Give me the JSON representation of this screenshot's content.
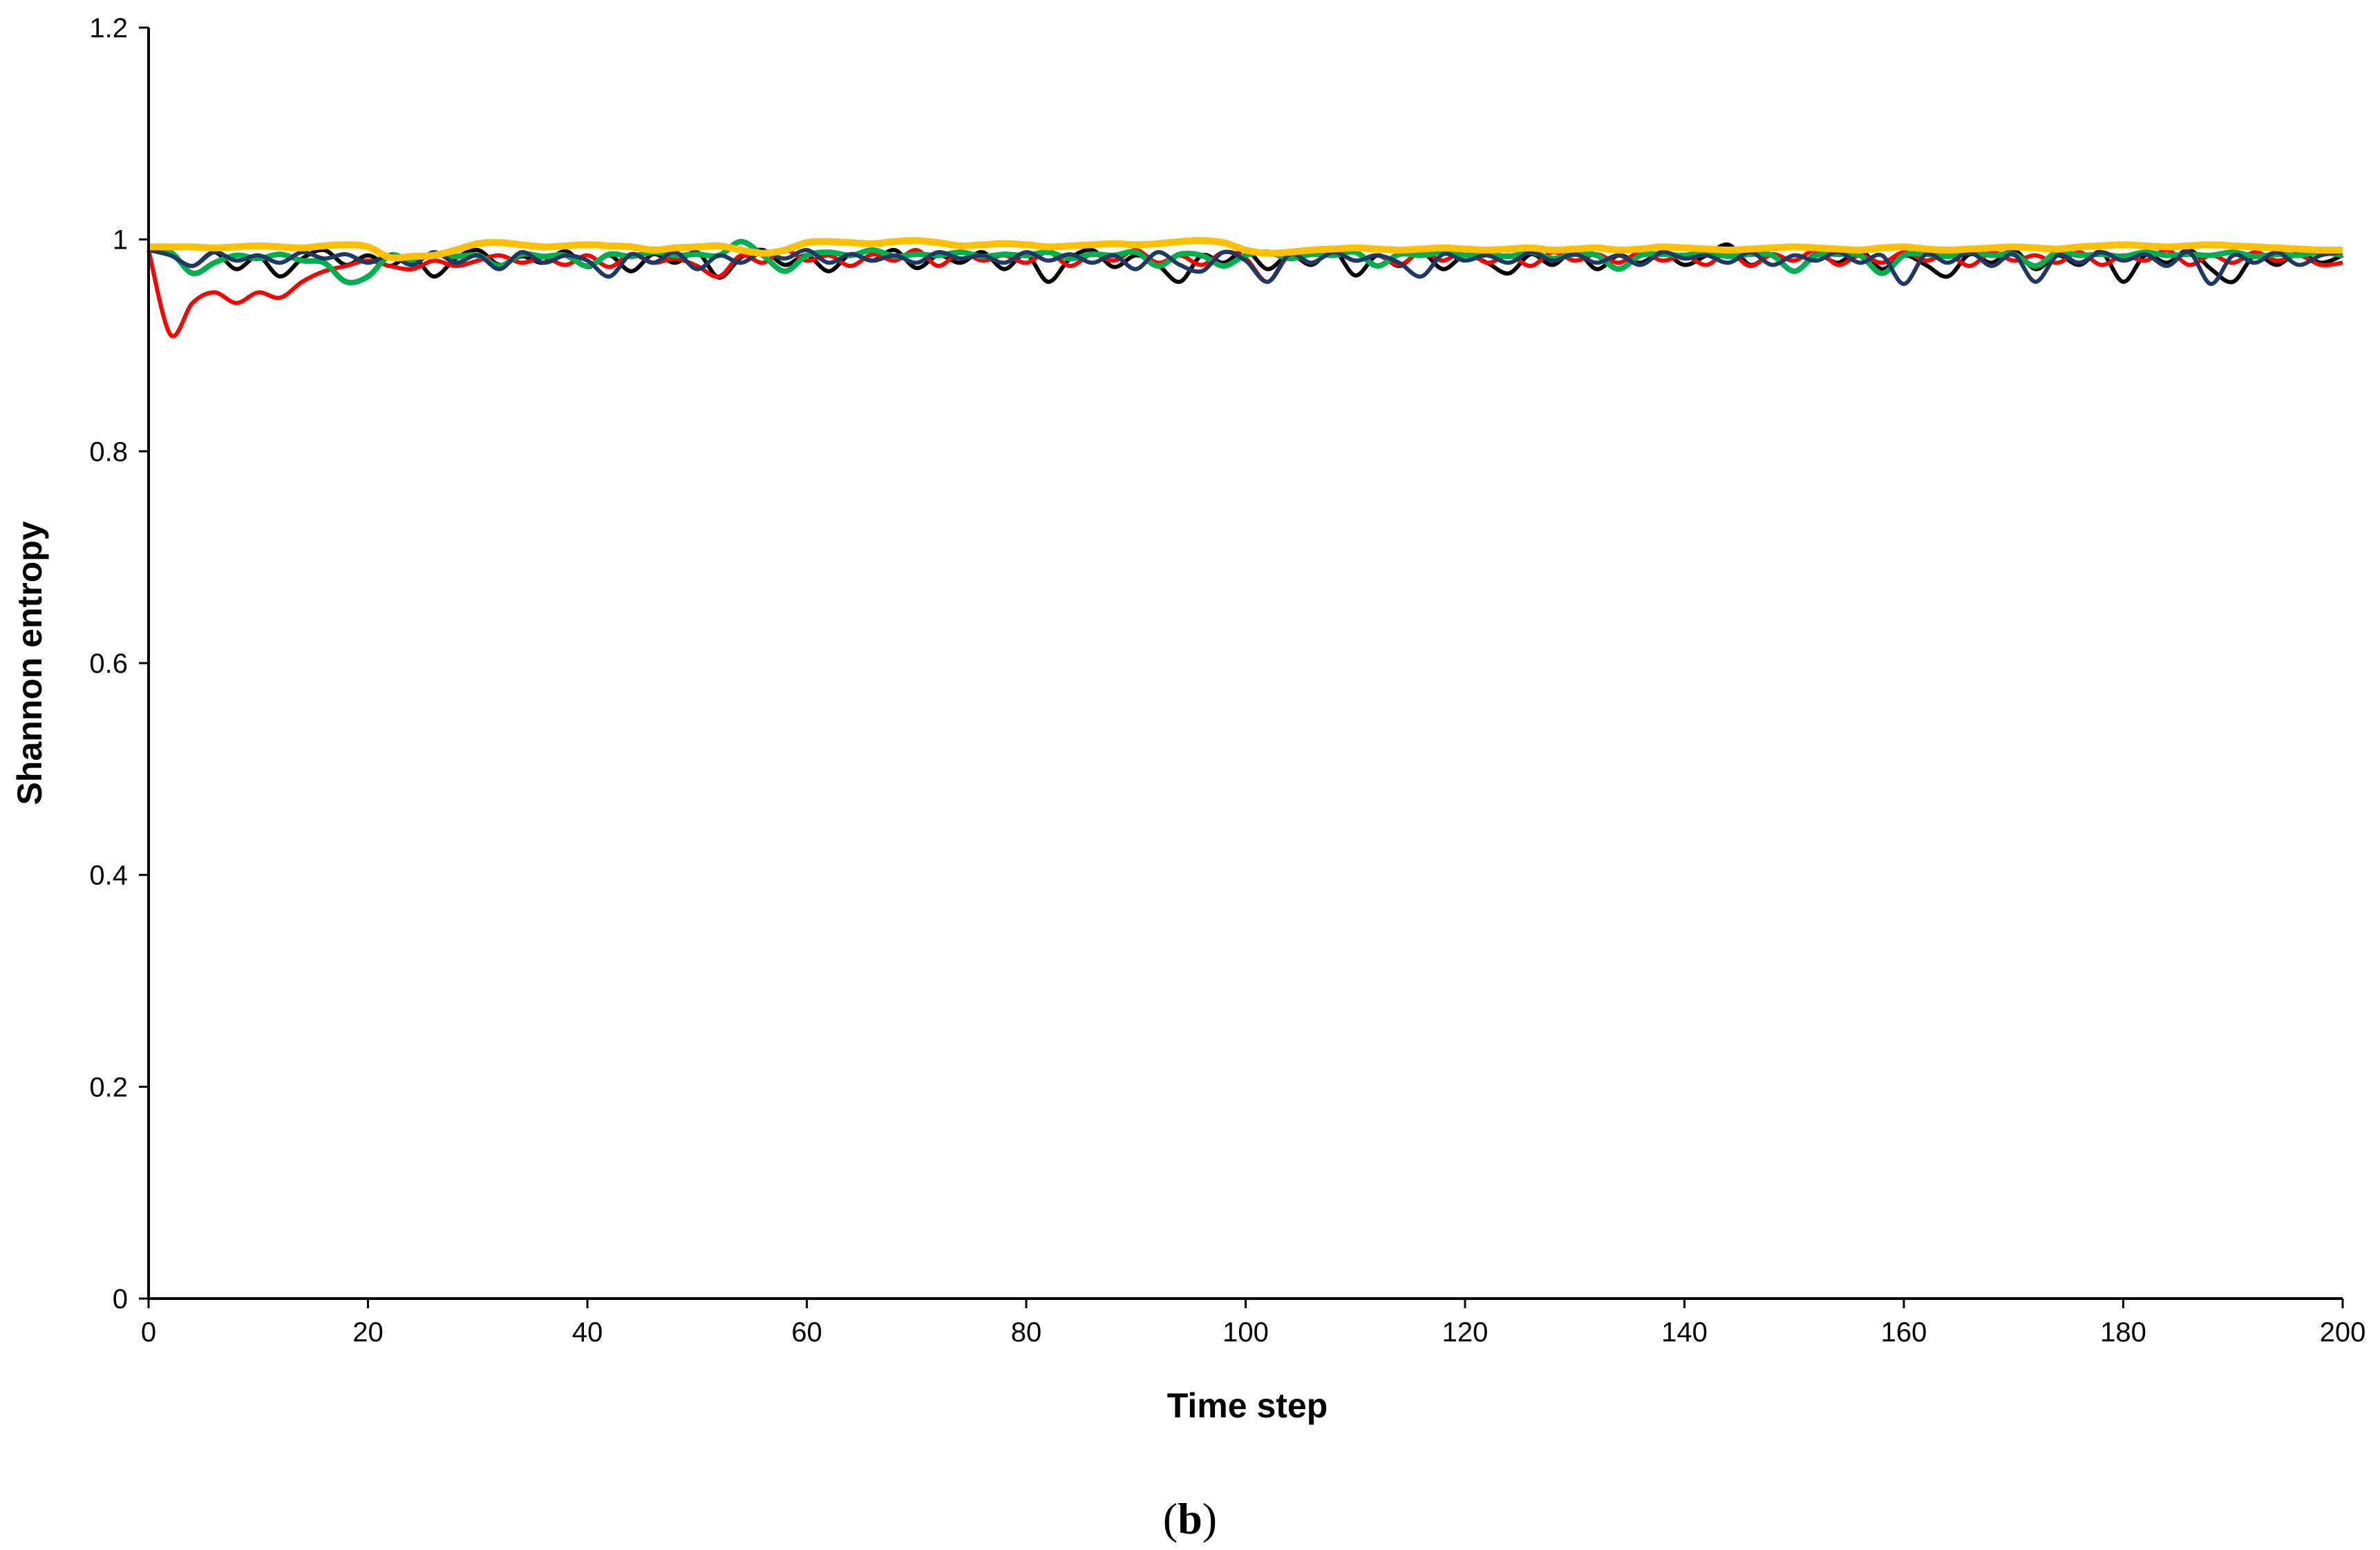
{
  "chart_data": {
    "type": "line",
    "title": "",
    "xlabel": "Time step",
    "ylabel": "Shannon entropy",
    "panel_label_parts": [
      "(",
      "b",
      ")"
    ],
    "xlim": [
      0,
      200
    ],
    "ylim": [
      0,
      1.2
    ],
    "x_ticks": [
      "0",
      "20",
      "40",
      "60",
      "80",
      "100",
      "120",
      "140",
      "160",
      "180",
      "200"
    ],
    "y_ticks": [
      "0",
      "0.2",
      "0.4",
      "0.6",
      "0.8",
      "1",
      "1.2"
    ],
    "grid": false,
    "legend": "none",
    "x": [
      0,
      2,
      4,
      6,
      8,
      10,
      12,
      14,
      16,
      18,
      20,
      22,
      24,
      26,
      28,
      30,
      32,
      34,
      36,
      38,
      40,
      42,
      44,
      46,
      48,
      50,
      52,
      54,
      56,
      58,
      60,
      62,
      64,
      66,
      68,
      70,
      72,
      74,
      76,
      78,
      80,
      82,
      84,
      86,
      88,
      90,
      92,
      94,
      96,
      98,
      100,
      102,
      104,
      106,
      108,
      110,
      112,
      114,
      116,
      118,
      120,
      122,
      124,
      126,
      128,
      130,
      132,
      134,
      136,
      138,
      140,
      142,
      144,
      146,
      148,
      150,
      152,
      154,
      156,
      158,
      160,
      162,
      164,
      166,
      168,
      170,
      172,
      174,
      176,
      178,
      180,
      182,
      184,
      186,
      188,
      190,
      192,
      194,
      196,
      198,
      200
    ],
    "series": [
      {
        "color": "#000000",
        "values": [
          0.99,
          0.985,
          0.975,
          0.988,
          0.972,
          0.984,
          0.965,
          0.982,
          0.99,
          0.976,
          0.985,
          0.975,
          0.985,
          0.965,
          0.982,
          0.99,
          0.976,
          0.984,
          0.978,
          0.989,
          0.974,
          0.985,
          0.97,
          0.986,
          0.978,
          0.988,
          0.964,
          0.983,
          0.99,
          0.976,
          0.985,
          0.97,
          0.986,
          0.98,
          0.99,
          0.973,
          0.985,
          0.978,
          0.988,
          0.972,
          0.986,
          0.96,
          0.982,
          0.99,
          0.974,
          0.985,
          0.976,
          0.96,
          0.985,
          0.978,
          0.99,
          0.972,
          0.986,
          0.976,
          0.99,
          0.966,
          0.985,
          0.975,
          0.988,
          0.972,
          0.985,
          0.978,
          0.968,
          0.986,
          0.976,
          0.99,
          0.972,
          0.985,
          0.978,
          0.988,
          0.976,
          0.985,
          0.995,
          0.976,
          0.985,
          0.97,
          0.986,
          0.978,
          0.99,
          0.972,
          0.985,
          0.976,
          0.965,
          0.986,
          0.978,
          0.99,
          0.972,
          0.985,
          0.976,
          0.988,
          0.96,
          0.985,
          0.978,
          0.99,
          0.972,
          0.96,
          0.985,
          0.976,
          0.988,
          0.978,
          0.985
        ]
      },
      {
        "color": "#ff0000",
        "values": [
          0.99,
          0.91,
          0.94,
          0.95,
          0.94,
          0.95,
          0.945,
          0.96,
          0.97,
          0.975,
          0.98,
          0.975,
          0.972,
          0.98,
          0.975,
          0.98,
          0.985,
          0.978,
          0.983,
          0.976,
          0.985,
          0.974,
          0.986,
          0.978,
          0.982,
          0.975,
          0.965,
          0.985,
          0.978,
          0.99,
          0.98,
          0.985,
          0.975,
          0.986,
          0.98,
          0.99,
          0.975,
          0.988,
          0.98,
          0.985,
          0.978,
          0.988,
          0.975,
          0.986,
          0.98,
          0.99,
          0.978,
          0.985,
          0.976,
          0.988,
          0.982,
          0.96,
          0.985,
          0.978,
          0.988,
          0.98,
          0.985,
          0.976,
          0.988,
          0.98,
          0.99,
          0.978,
          0.985,
          0.975,
          0.988,
          0.98,
          0.986,
          0.978,
          0.988,
          0.98,
          0.985,
          0.976,
          0.988,
          0.975,
          0.986,
          0.98,
          0.99,
          0.976,
          0.985,
          0.978,
          0.988,
          0.98,
          0.986,
          0.975,
          0.988,
          0.98,
          0.985,
          0.978,
          0.988,
          0.976,
          0.985,
          0.98,
          0.99,
          0.976,
          0.985,
          0.978,
          0.988,
          0.98,
          0.985,
          0.976,
          0.978
        ]
      },
      {
        "color": "#00b050",
        "values": [
          0.99,
          0.988,
          0.968,
          0.978,
          0.985,
          0.982,
          0.986,
          0.98,
          0.978,
          0.96,
          0.965,
          0.985,
          0.98,
          0.986,
          0.984,
          0.985,
          0.975,
          0.986,
          0.984,
          0.985,
          0.975,
          0.986,
          0.984,
          0.988,
          0.985,
          0.986,
          0.985,
          0.998,
          0.985,
          0.97,
          0.985,
          0.988,
          0.985,
          0.99,
          0.984,
          0.986,
          0.985,
          0.988,
          0.984,
          0.986,
          0.985,
          0.988,
          0.982,
          0.986,
          0.985,
          0.988,
          0.975,
          0.986,
          0.985,
          0.975,
          0.985,
          0.988,
          0.982,
          0.986,
          0.985,
          0.988,
          0.975,
          0.986,
          0.985,
          0.988,
          0.985,
          0.986,
          0.984,
          0.988,
          0.982,
          0.986,
          0.985,
          0.972,
          0.985,
          0.986,
          0.985,
          0.988,
          0.984,
          0.986,
          0.985,
          0.97,
          0.985,
          0.986,
          0.985,
          0.968,
          0.985,
          0.986,
          0.984,
          0.988,
          0.985,
          0.986,
          0.975,
          0.988,
          0.985,
          0.986,
          0.984,
          0.988,
          0.985,
          0.986,
          0.985,
          0.988,
          0.984,
          0.986,
          0.985,
          0.988,
          0.985
        ]
      },
      {
        "color": "#1f3864",
        "values": [
          0.99,
          0.985,
          0.975,
          0.988,
          0.98,
          0.985,
          0.978,
          0.988,
          0.982,
          0.986,
          0.978,
          0.985,
          0.976,
          0.988,
          0.978,
          0.985,
          0.972,
          0.988,
          0.978,
          0.985,
          0.98,
          0.965,
          0.986,
          0.978,
          0.988,
          0.972,
          0.985,
          0.978,
          0.988,
          0.982,
          0.99,
          0.978,
          0.986,
          0.98,
          0.985,
          0.978,
          0.988,
          0.982,
          0.985,
          0.978,
          0.988,
          0.98,
          0.986,
          0.978,
          0.985,
          0.972,
          0.988,
          0.976,
          0.97,
          0.988,
          0.98,
          0.96,
          0.986,
          0.978,
          0.988,
          0.98,
          0.985,
          0.978,
          0.965,
          0.986,
          0.98,
          0.985,
          0.978,
          0.988,
          0.98,
          0.986,
          0.978,
          0.985,
          0.976,
          0.988,
          0.982,
          0.985,
          0.978,
          0.988,
          0.976,
          0.985,
          0.98,
          0.988,
          0.978,
          0.985,
          0.958,
          0.986,
          0.978,
          0.988,
          0.975,
          0.986,
          0.96,
          0.985,
          0.978,
          0.988,
          0.98,
          0.986,
          0.975,
          0.988,
          0.958,
          0.985,
          0.978,
          0.988,
          0.976,
          0.985,
          0.988
        ]
      },
      {
        "color": "#ffc000",
        "values": [
          0.993,
          0.993,
          0.993,
          0.992,
          0.993,
          0.994,
          0.993,
          0.992,
          0.994,
          0.995,
          0.993,
          0.983,
          0.984,
          0.985,
          0.99,
          0.996,
          0.997,
          0.995,
          0.993,
          0.994,
          0.995,
          0.994,
          0.993,
          0.99,
          0.992,
          0.993,
          0.994,
          0.99,
          0.987,
          0.99,
          0.997,
          0.998,
          0.997,
          0.996,
          0.998,
          0.999,
          0.997,
          0.994,
          0.995,
          0.996,
          0.995,
          0.993,
          0.994,
          0.995,
          0.996,
          0.995,
          0.996,
          0.998,
          0.999,
          0.997,
          0.99,
          0.987,
          0.988,
          0.99,
          0.991,
          0.992,
          0.991,
          0.99,
          0.991,
          0.992,
          0.991,
          0.99,
          0.991,
          0.992,
          0.99,
          0.991,
          0.992,
          0.99,
          0.991,
          0.993,
          0.992,
          0.991,
          0.99,
          0.991,
          0.992,
          0.993,
          0.992,
          0.991,
          0.99,
          0.992,
          0.993,
          0.991,
          0.99,
          0.991,
          0.992,
          0.993,
          0.992,
          0.991,
          0.993,
          0.994,
          0.995,
          0.994,
          0.993,
          0.994,
          0.995,
          0.994,
          0.993,
          0.992,
          0.991,
          0.99,
          0.99
        ]
      }
    ]
  }
}
